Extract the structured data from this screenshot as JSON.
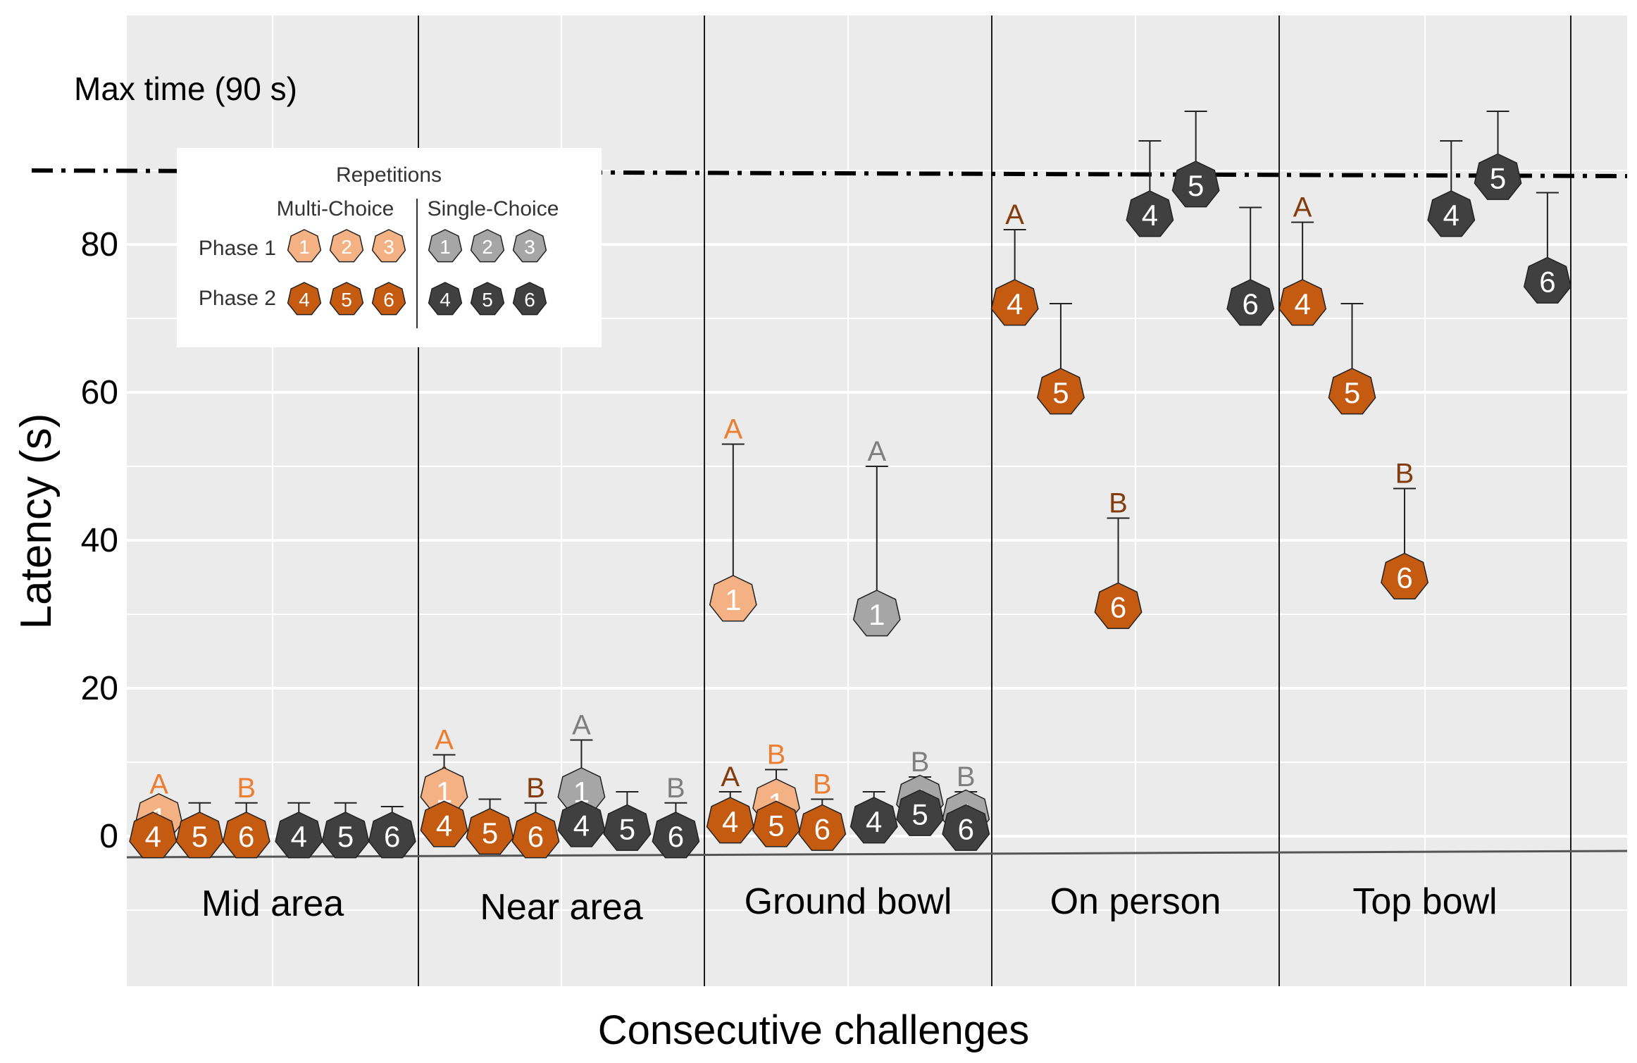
{
  "chart_data": {
    "type": "scatter",
    "xlabel": "Consecutive challenges",
    "ylabel": "Latency (s)",
    "ylim": [
      -18,
      100
    ],
    "y_ticks": [
      "0",
      "20",
      "40",
      "60",
      "80"
    ],
    "grid": true,
    "max_time": {
      "label": "Max time (90 s)",
      "value": 90
    },
    "categories": [
      "Mid area",
      "Near area",
      "Ground bowl",
      "On person",
      "Top bowl"
    ],
    "colors": {
      "multi_phase1": "#f4b183",
      "multi_phase2": "#c55a11",
      "single_phase1": "#a6a6a6",
      "single_phase2": "#404040",
      "letter_light_orange": "#ed7d31",
      "letter_dark_orange": "#843c0c",
      "letter_gray": "#7f7f7f"
    },
    "legend": {
      "title": "Repetitions",
      "multi_choice_label": "Multi-Choice",
      "single_choice_label": "Single-Choice",
      "phase1_label": "Phase 1",
      "phase2_label": "Phase 2",
      "multi_phase1": [
        "1",
        "2",
        "3"
      ],
      "multi_phase2": [
        "4",
        "5",
        "6"
      ],
      "single_phase1": [
        "1",
        "2",
        "3"
      ],
      "single_phase2": [
        "4",
        "5",
        "6"
      ]
    },
    "series": [
      {
        "category": "Mid area",
        "points": [
          {
            "label": "1",
            "group": "multi_phase1",
            "slot": 0.11,
            "y": 2.5,
            "err": 5,
            "letter": "A",
            "letter_color": "letter_light_orange"
          },
          {
            "label": "4",
            "group": "multi_phase2",
            "slot": 0.09,
            "y": 0,
            "err": 4.5
          },
          {
            "label": "5",
            "group": "multi_phase2",
            "slot": 0.25,
            "y": 0,
            "err": 4.5
          },
          {
            "label": "6",
            "group": "multi_phase2",
            "slot": 0.41,
            "y": 0,
            "err": 4.5,
            "letter": "B",
            "letter_color": "letter_light_orange"
          },
          {
            "label": "4",
            "group": "single_phase2",
            "slot": 0.59,
            "y": 0,
            "err": 4.5
          },
          {
            "label": "5",
            "group": "single_phase2",
            "slot": 0.75,
            "y": 0,
            "err": 4.5
          },
          {
            "label": "6",
            "group": "single_phase2",
            "slot": 0.91,
            "y": 0,
            "err": 4
          }
        ]
      },
      {
        "category": "Near area",
        "points": [
          {
            "label": "1",
            "group": "multi_phase1",
            "slot": 0.09,
            "y": 6,
            "err": 11,
            "letter": "A",
            "letter_color": "letter_light_orange"
          },
          {
            "label": "4",
            "group": "multi_phase2",
            "slot": 0.09,
            "y": 1.5,
            "err": 6,
            "letter": "A",
            "letter_color": "letter_dark_orange"
          },
          {
            "label": "5",
            "group": "multi_phase2",
            "slot": 0.25,
            "y": 0.5,
            "err": 5
          },
          {
            "label": "6",
            "group": "multi_phase2",
            "slot": 0.41,
            "y": 0,
            "err": 4.5,
            "letter": "B",
            "letter_color": "letter_dark_orange"
          },
          {
            "label": "1",
            "group": "single_phase1",
            "slot": 0.57,
            "y": 6,
            "err": 13,
            "letter": "A",
            "letter_color": "letter_gray"
          },
          {
            "label": "4",
            "group": "single_phase2",
            "slot": 0.57,
            "y": 1.5,
            "err": 5
          },
          {
            "label": "5",
            "group": "single_phase2",
            "slot": 0.73,
            "y": 1,
            "err": 6
          },
          {
            "label": "6",
            "group": "single_phase2",
            "slot": 0.9,
            "y": 0,
            "err": 4.5,
            "letter": "B",
            "letter_color": "letter_gray"
          }
        ]
      },
      {
        "category": "Ground bowl",
        "points": [
          {
            "label": "1",
            "group": "multi_phase1",
            "slot": 0.1,
            "y": 32,
            "err": 53,
            "letter": "A",
            "letter_color": "letter_light_orange"
          },
          {
            "label": "4",
            "group": "multi_phase2",
            "slot": 0.09,
            "y": 2,
            "err": 6,
            "letter": "A",
            "letter_color": "letter_dark_orange"
          },
          {
            "label": "1",
            "group": "multi_phase1",
            "slot": 0.25,
            "y": 4.5,
            "err": 9,
            "letter": "B",
            "letter_color": "letter_light_orange"
          },
          {
            "label": "5",
            "group": "multi_phase2",
            "slot": 0.25,
            "y": 1.5,
            "err": 6
          },
          {
            "label": "6",
            "group": "multi_phase2",
            "slot": 0.41,
            "y": 1,
            "err": 5,
            "letter": "B",
            "letter_color": "letter_light_orange"
          },
          {
            "label": "1",
            "group": "single_phase1",
            "slot": 0.6,
            "y": 30,
            "err": 50,
            "letter": "A",
            "letter_color": "letter_gray"
          },
          {
            "label": "4",
            "group": "single_phase2",
            "slot": 0.59,
            "y": 2,
            "err": 6
          },
          {
            "label": "1",
            "group": "single_phase1",
            "slot": 0.75,
            "y": 5,
            "err": 8,
            "letter": "B",
            "letter_color": "letter_gray"
          },
          {
            "label": "5",
            "group": "single_phase2",
            "slot": 0.75,
            "y": 3,
            "err": 7
          },
          {
            "label": "1",
            "group": "single_phase1",
            "slot": 0.91,
            "y": 3,
            "err": 6,
            "letter": "B",
            "letter_color": "letter_gray"
          },
          {
            "label": "6",
            "group": "single_phase2",
            "slot": 0.91,
            "y": 1,
            "err": 5
          }
        ]
      },
      {
        "category": "On person",
        "points": [
          {
            "label": "4",
            "group": "multi_phase2",
            "slot": 0.08,
            "y": 72,
            "err": 82,
            "letter": "A",
            "letter_color": "letter_dark_orange"
          },
          {
            "label": "5",
            "group": "multi_phase2",
            "slot": 0.24,
            "y": 60,
            "err": 72
          },
          {
            "label": "6",
            "group": "multi_phase2",
            "slot": 0.44,
            "y": 31,
            "err": 43,
            "letter": "B",
            "letter_color": "letter_dark_orange"
          },
          {
            "label": "4",
            "group": "single_phase2",
            "slot": 0.55,
            "y": 84,
            "err": 94
          },
          {
            "label": "5",
            "group": "single_phase2",
            "slot": 0.71,
            "y": 88,
            "err": 98
          },
          {
            "label": "6",
            "group": "single_phase2",
            "slot": 0.9,
            "y": 72,
            "err": 85
          }
        ]
      },
      {
        "category": "Top bowl",
        "points": [
          {
            "label": "4",
            "group": "multi_phase2",
            "slot": 0.08,
            "y": 72,
            "err": 83,
            "letter": "A",
            "letter_color": "letter_dark_orange"
          },
          {
            "label": "5",
            "group": "multi_phase2",
            "slot": 0.25,
            "y": 60,
            "err": 72
          },
          {
            "label": "6",
            "group": "multi_phase2",
            "slot": 0.43,
            "y": 35,
            "err": 47,
            "letter": "B",
            "letter_color": "letter_dark_orange"
          },
          {
            "label": "4",
            "group": "single_phase2",
            "slot": 0.59,
            "y": 84,
            "err": 94
          },
          {
            "label": "5",
            "group": "single_phase2",
            "slot": 0.75,
            "y": 89,
            "err": 98
          },
          {
            "label": "6",
            "group": "single_phase2",
            "slot": 0.92,
            "y": 75,
            "err": 87
          }
        ]
      }
    ]
  }
}
